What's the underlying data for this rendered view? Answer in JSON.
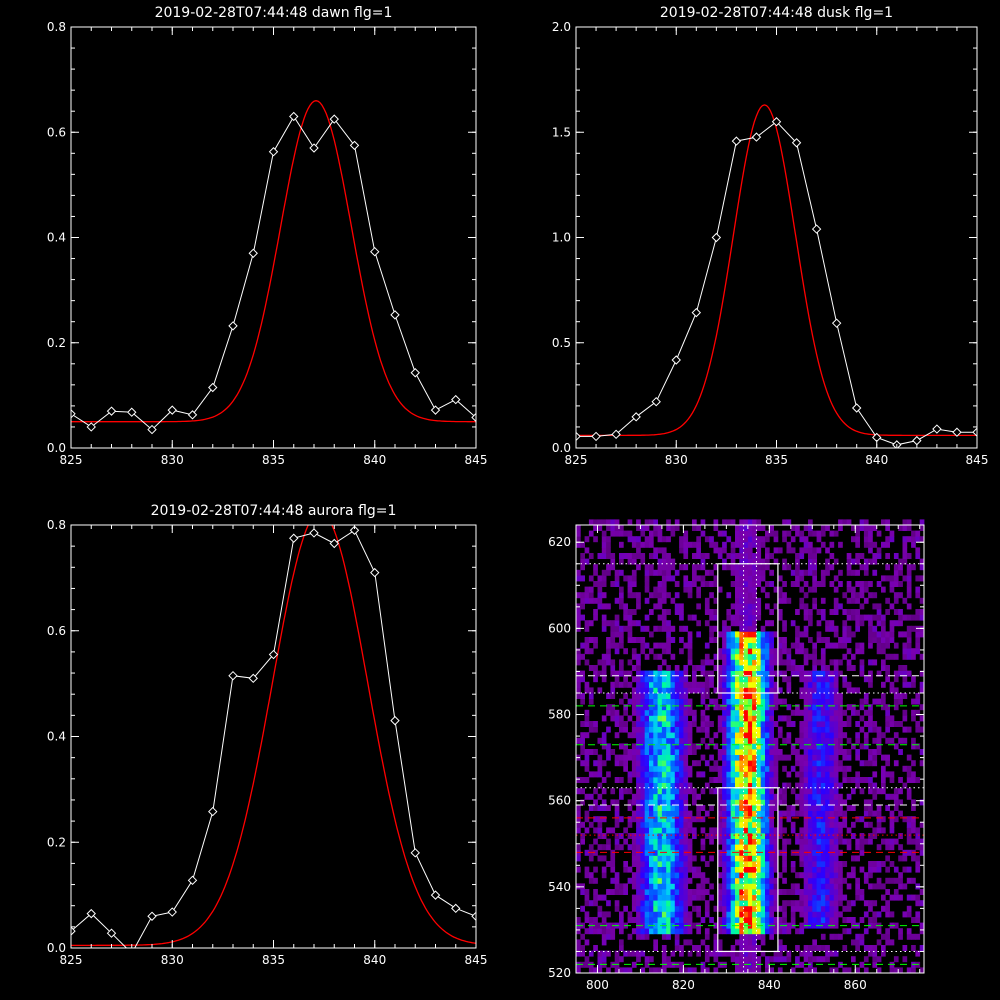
{
  "chart_data": [
    {
      "type": "line",
      "title": "2019-02-28T07:44:48 dawn flg=1",
      "xlim": [
        825,
        845
      ],
      "ylim": [
        0,
        0.8
      ],
      "xticks": [
        825,
        830,
        835,
        840,
        845
      ],
      "xtick_labels": [
        "825",
        "830",
        "835",
        "840",
        "845"
      ],
      "yticks": [
        0,
        0.2,
        0.4,
        0.6,
        0.8
      ],
      "ytick_labels": [
        "0.0",
        "0.2",
        "0.4",
        "0.6",
        "0.8"
      ],
      "series": [
        {
          "color": "#ffffff",
          "style": "line+diamond",
          "x": [
            825,
            826,
            827,
            828,
            829,
            830,
            831,
            832,
            833,
            834,
            835,
            836,
            837,
            838,
            839,
            840,
            841,
            842,
            843,
            844,
            845
          ],
          "y": [
            0.065,
            0.04,
            0.07,
            0.068,
            0.035,
            0.072,
            0.063,
            0.115,
            0.232,
            0.37,
            0.563,
            0.63,
            0.57,
            0.625,
            0.575,
            0.373,
            0.253,
            0.143,
            0.072,
            0.092,
            0.058
          ]
        },
        {
          "color": "#ff0000",
          "style": "line",
          "fit": "gaussian",
          "amplitude": 0.61,
          "center": 837.1,
          "sigma": 1.75,
          "offset": 0.05
        }
      ]
    },
    {
      "type": "line",
      "title": "2019-02-28T07:44:48 dusk flg=1",
      "xlim": [
        825,
        845
      ],
      "ylim": [
        0,
        2.0
      ],
      "xticks": [
        825,
        830,
        835,
        840,
        845
      ],
      "xtick_labels": [
        "825",
        "830",
        "835",
        "840",
        "845"
      ],
      "yticks": [
        0,
        0.5,
        1.0,
        1.5,
        2.0
      ],
      "ytick_labels": [
        "0.0",
        "0.5",
        "1.0",
        "1.5",
        "2.0"
      ],
      "series": [
        {
          "color": "#ffffff",
          "style": "line+diamond",
          "x": [
            825,
            826,
            827,
            828,
            829,
            830,
            831,
            832,
            833,
            834,
            835,
            836,
            837,
            838,
            839,
            840,
            841,
            842,
            843,
            844,
            845
          ],
          "y": [
            0.055,
            0.055,
            0.065,
            0.148,
            0.22,
            0.418,
            0.643,
            1.0,
            1.458,
            1.477,
            1.55,
            1.45,
            1.04,
            0.593,
            0.19,
            0.05,
            0.015,
            0.035,
            0.09,
            0.075,
            0.075
          ]
        },
        {
          "color": "#ff0000",
          "style": "line",
          "fit": "gaussian",
          "amplitude": 1.57,
          "center": 834.4,
          "sigma": 1.55,
          "offset": 0.06
        }
      ]
    },
    {
      "type": "line",
      "title": "2019-02-28T07:44:48 aurora flg=1",
      "xlim": [
        825,
        845
      ],
      "ylim": [
        0,
        0.8
      ],
      "xticks": [
        825,
        830,
        835,
        840,
        845
      ],
      "xtick_labels": [
        "825",
        "830",
        "835",
        "840",
        "845"
      ],
      "yticks": [
        0,
        0.2,
        0.4,
        0.6,
        0.8
      ],
      "ytick_labels": [
        "0.0",
        "0.2",
        "0.4",
        "0.6",
        "0.8"
      ],
      "series": [
        {
          "color": "#ffffff",
          "style": "line+diamond",
          "x": [
            825,
            826,
            827,
            828,
            829,
            830,
            831,
            832,
            833,
            834,
            835,
            836,
            837,
            838,
            839,
            840,
            841,
            842,
            843,
            844,
            845
          ],
          "y": [
            0.032,
            0.065,
            0.028,
            -0.01,
            0.06,
            0.068,
            0.128,
            0.258,
            0.515,
            0.51,
            0.555,
            0.775,
            0.785,
            0.765,
            0.79,
            0.71,
            0.43,
            0.18,
            0.1,
            0.075,
            0.06
          ]
        },
        {
          "color": "#ff0000",
          "style": "line",
          "fit": "gaussian",
          "amplitude": 0.82,
          "center": 837.3,
          "sigma": 2.35,
          "offset": 0.005
        }
      ]
    },
    {
      "type": "heatmap",
      "title": "",
      "xlim": [
        795,
        876
      ],
      "ylim": [
        520,
        624
      ],
      "xticks": [
        800,
        820,
        840,
        860
      ],
      "xtick_labels": [
        "800",
        "820",
        "840",
        "860"
      ],
      "yticks": [
        520,
        540,
        560,
        580,
        600,
        620
      ],
      "ytick_labels": [
        "520",
        "540",
        "560",
        "580",
        "600",
        "620"
      ],
      "colormap": [
        "#5a007a",
        "#7a00b0",
        "#2b00ff",
        "#0060ff",
        "#00c8ff",
        "#00ff96",
        "#c8ff00",
        "#ffff00",
        "#ff8000",
        "#ff0000"
      ],
      "emission_columns": [
        {
          "x_center": 815,
          "x_width": 3.5,
          "y_range": [
            528,
            590
          ],
          "peak": 0.55
        },
        {
          "x_center": 835,
          "x_width": 3.0,
          "y_range": [
            528,
            598
          ],
          "peak": 1.0
        },
        {
          "x_center": 852,
          "x_width": 3.0,
          "y_range": [
            530,
            590
          ],
          "peak": 0.28
        }
      ],
      "boxes": [
        {
          "x": [
            828,
            842
          ],
          "y": [
            585,
            615
          ],
          "color": "#ffffff"
        },
        {
          "x": [
            828,
            842
          ],
          "y": [
            525,
            563
          ],
          "color": "#ffffff"
        }
      ],
      "hlines": [
        {
          "y": 615,
          "color": "#ffffff",
          "style": "dotted"
        },
        {
          "y": 589,
          "color": "#ffffff",
          "style": "dashed"
        },
        {
          "y": 585,
          "color": "#ffffff",
          "style": "dotted"
        },
        {
          "y": 582,
          "color": "#00ff00",
          "style": "dashed"
        },
        {
          "y": 573,
          "color": "#00ff00",
          "style": "dashed"
        },
        {
          "y": 563,
          "color": "#ffffff",
          "style": "dotted"
        },
        {
          "y": 559,
          "color": "#ffffff",
          "style": "dashed"
        },
        {
          "y": 556,
          "color": "#ff0000",
          "style": "dashed"
        },
        {
          "y": 552,
          "color": "#ff0000",
          "style": "dotted"
        },
        {
          "y": 548,
          "color": "#ff0000",
          "style": "dashed"
        },
        {
          "y": 531,
          "color": "#00ff00",
          "style": "dashed"
        },
        {
          "y": 525,
          "color": "#ffffff",
          "style": "dotted"
        },
        {
          "y": 522,
          "color": "#00ff00",
          "style": "dashed"
        }
      ],
      "vlines": [
        {
          "x": 834,
          "color": "#ffffff",
          "style": "dotted"
        },
        {
          "x": 837,
          "color": "#ffffff",
          "style": "dotted"
        }
      ]
    }
  ]
}
